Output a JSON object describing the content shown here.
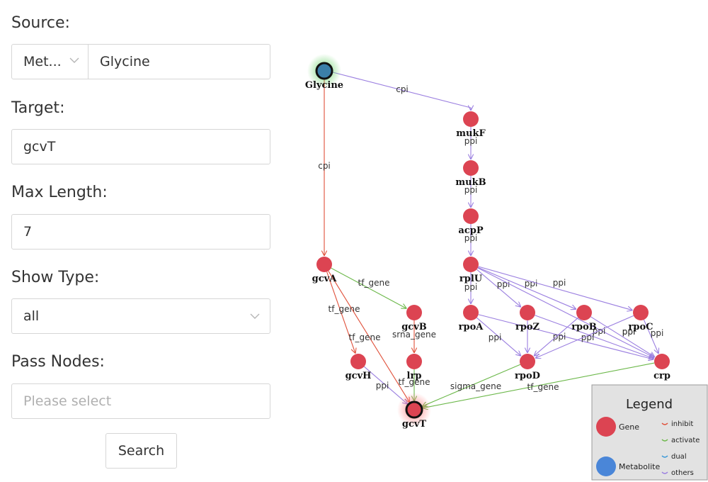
{
  "form": {
    "source_label": "Source:",
    "source_type": "Met...",
    "source_value": "Glycine",
    "target_label": "Target:",
    "target_value": "gcvT",
    "max_length_label": "Max Length:",
    "max_length_value": "7",
    "show_type_label": "Show Type:",
    "show_type_value": "all",
    "pass_nodes_label": "Pass Nodes:",
    "pass_nodes_placeholder": "Please select",
    "search_label": "Search"
  },
  "legend": {
    "title": "Legend",
    "gene": "Gene",
    "metabolite": "Metabolite",
    "inhibit": "inhibit",
    "activate": "activate",
    "dual": "dual",
    "others": "others"
  },
  "colors": {
    "gene": "#dc4452",
    "metabolite": "#3b7fa9",
    "inhibit": "#e0503a",
    "activate": "#6cb84a",
    "dual": "#3a98d8",
    "others": "#9b7fe0"
  },
  "graph": {
    "nodes": [
      {
        "id": "Glycine",
        "type": "metabolite",
        "role": "source"
      },
      {
        "id": "mukF",
        "type": "gene"
      },
      {
        "id": "mukB",
        "type": "gene"
      },
      {
        "id": "acpP",
        "type": "gene"
      },
      {
        "id": "rplU",
        "type": "gene"
      },
      {
        "id": "gcvA",
        "type": "gene"
      },
      {
        "id": "gcvB",
        "type": "gene"
      },
      {
        "id": "lrp",
        "type": "gene"
      },
      {
        "id": "gcvH",
        "type": "gene"
      },
      {
        "id": "gcvT",
        "type": "gene",
        "role": "target"
      },
      {
        "id": "rpoA",
        "type": "gene"
      },
      {
        "id": "rpoZ",
        "type": "gene"
      },
      {
        "id": "rpoB",
        "type": "gene"
      },
      {
        "id": "rpoC",
        "type": "gene"
      },
      {
        "id": "rpoD",
        "type": "gene"
      },
      {
        "id": "crp",
        "type": "gene"
      }
    ],
    "edges": [
      {
        "from": "Glycine",
        "to": "mukF",
        "label": "cpi",
        "kind": "others"
      },
      {
        "from": "Glycine",
        "to": "gcvA",
        "label": "cpi",
        "kind": "inhibit"
      },
      {
        "from": "mukF",
        "to": "mukB",
        "label": "ppi",
        "kind": "others"
      },
      {
        "from": "mukB",
        "to": "acpP",
        "label": "ppi",
        "kind": "others"
      },
      {
        "from": "acpP",
        "to": "rplU",
        "label": "ppi",
        "kind": "others"
      },
      {
        "from": "rplU",
        "to": "rpoA",
        "label": "ppi",
        "kind": "others"
      },
      {
        "from": "rplU",
        "to": "rpoZ",
        "label": "ppi",
        "kind": "others"
      },
      {
        "from": "rplU",
        "to": "rpoB",
        "label": "ppi",
        "kind": "others"
      },
      {
        "from": "rplU",
        "to": "rpoC",
        "label": "ppi",
        "kind": "others"
      },
      {
        "from": "rplU",
        "to": "crp",
        "label": "",
        "kind": "others"
      },
      {
        "from": "gcvA",
        "to": "gcvB",
        "label": "tf_gene",
        "kind": "activate"
      },
      {
        "from": "gcvA",
        "to": "gcvH",
        "label": "tf_gene",
        "kind": "inhibit"
      },
      {
        "from": "gcvA",
        "to": "gcvT",
        "label": "tf_gene",
        "kind": "inhibit"
      },
      {
        "from": "gcvB",
        "to": "lrp",
        "label": "srna_gene",
        "kind": "inhibit"
      },
      {
        "from": "gcvH",
        "to": "gcvT",
        "label": "ppi",
        "kind": "others"
      },
      {
        "from": "lrp",
        "to": "gcvT",
        "label": "tf_gene",
        "kind": "activate"
      },
      {
        "from": "rpoA",
        "to": "rpoD",
        "label": "ppi",
        "kind": "others"
      },
      {
        "from": "rpoA",
        "to": "crp",
        "label": "",
        "kind": "others"
      },
      {
        "from": "rpoZ",
        "to": "rpoD",
        "label": "ppi",
        "kind": "others"
      },
      {
        "from": "rpoZ",
        "to": "crp",
        "label": "ppi",
        "kind": "others"
      },
      {
        "from": "rpoB",
        "to": "rpoD",
        "label": "ppi",
        "kind": "others"
      },
      {
        "from": "rpoB",
        "to": "crp",
        "label": "ppi",
        "kind": "others"
      },
      {
        "from": "rpoC",
        "to": "rpoD",
        "label": "ppi",
        "kind": "others"
      },
      {
        "from": "rpoC",
        "to": "crp",
        "label": "ppi",
        "kind": "others"
      },
      {
        "from": "rpoD",
        "to": "gcvT",
        "label": "sigma_gene",
        "kind": "activate"
      },
      {
        "from": "crp",
        "to": "gcvT",
        "label": "tf_gene",
        "kind": "activate"
      }
    ]
  }
}
